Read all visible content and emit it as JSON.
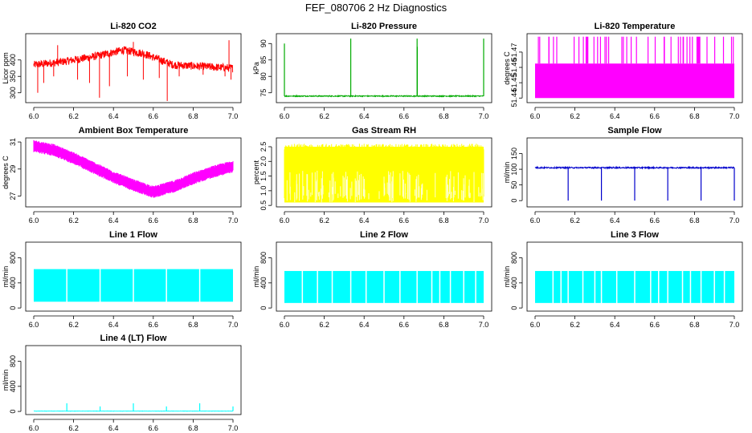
{
  "page": {
    "title": "FEF_080706  2 Hz Diagnostics"
  },
  "chart_data": [
    {
      "type": "line",
      "title": "Li-820 CO2",
      "xlabel": "",
      "ylabel": "Licor ppm",
      "xlim": [
        6.0,
        7.0
      ],
      "ylim": [
        270,
        480
      ],
      "color": "#ff0000",
      "xticks": [
        "6.0",
        "6.2",
        "6.4",
        "6.6",
        "6.8",
        "7.0"
      ],
      "yticks": [
        {
          "v": 300,
          "label": "300"
        },
        {
          "v": 350,
          "label": "350"
        },
        {
          "v": 400,
          "label": "400"
        }
      ],
      "render": {
        "pattern": "noisy",
        "base": [
          [
            6.0,
            385
          ],
          [
            6.15,
            395
          ],
          [
            6.3,
            410
          ],
          [
            6.45,
            430
          ],
          [
            6.55,
            420
          ],
          [
            6.7,
            385
          ],
          [
            7.0,
            375
          ]
        ],
        "noise": 12,
        "spikes": [
          [
            6.02,
            300
          ],
          [
            6.05,
            330
          ],
          [
            6.1,
            350
          ],
          [
            6.22,
            340
          ],
          [
            6.28,
            330
          ],
          [
            6.33,
            285
          ],
          [
            6.38,
            320
          ],
          [
            6.47,
            350
          ],
          [
            6.55,
            340
          ],
          [
            6.63,
            345
          ],
          [
            6.67,
            275
          ],
          [
            6.73,
            350
          ],
          [
            6.85,
            355
          ],
          [
            6.96,
            350
          ],
          [
            6.99,
            340
          ]
        ],
        "upspikes": [
          [
            6.12,
            445
          ],
          [
            6.5,
            455
          ],
          [
            6.98,
            460
          ]
        ]
      }
    },
    {
      "type": "line",
      "title": "Li-820 Pressure",
      "xlabel": "",
      "ylabel": "kPa",
      "xlim": [
        6.0,
        7.0
      ],
      "ylim": [
        72,
        93
      ],
      "color": "#00aa00",
      "xticks": [
        "6.0",
        "6.2",
        "6.4",
        "6.6",
        "6.8",
        "7.0"
      ],
      "yticks": [
        {
          "v": 75,
          "label": "75"
        },
        {
          "v": 80,
          "label": "80"
        },
        {
          "v": 85,
          "label": "85"
        },
        {
          "v": 90,
          "label": "90"
        }
      ],
      "render": {
        "pattern": "flat",
        "level": 74,
        "noise": 0.15,
        "upspikes": [
          [
            6.0,
            90
          ],
          [
            6.333,
            91.5
          ],
          [
            6.666,
            91.5
          ],
          [
            6.667,
            89
          ],
          [
            7.0,
            91.5
          ]
        ]
      }
    },
    {
      "type": "line",
      "title": "Li-820 Temperature",
      "xlabel": "",
      "ylabel": "degrees C",
      "xlim": [
        6.0,
        7.0
      ],
      "ylim": [
        51.437,
        51.482
      ],
      "color": "#ff00ff",
      "xticks": [
        "6.0",
        "6.2",
        "6.4",
        "6.6",
        "6.8",
        "7.0"
      ],
      "yticks": [
        {
          "v": 51.44,
          "label": "51.44"
        },
        {
          "v": 51.45,
          "label": "51.45"
        },
        {
          "v": 51.46,
          "label": "51.46"
        },
        {
          "v": 51.47,
          "label": "51.47"
        }
      ],
      "render": {
        "pattern": "band",
        "lo": 51.44,
        "hi": 51.4625,
        "spikeTop": 51.48,
        "spikeCount": 45
      }
    },
    {
      "type": "line",
      "title": "Ambient Box Temperature",
      "xlabel": "",
      "ylabel": "degrees C",
      "xlim": [
        6.0,
        7.0
      ],
      "ylim": [
        26.2,
        31.3
      ],
      "color": "#ff00ff",
      "xticks": [
        "6.0",
        "6.2",
        "6.4",
        "6.6",
        "6.8",
        "7.0"
      ],
      "yticks": [
        {
          "v": 27,
          "label": "27"
        },
        {
          "v": 29,
          "label": "29"
        },
        {
          "v": 31,
          "label": "31"
        }
      ],
      "render": {
        "pattern": "envelope",
        "center": [
          [
            6.0,
            30.7
          ],
          [
            6.1,
            30.4
          ],
          [
            6.2,
            29.8
          ],
          [
            6.3,
            29.1
          ],
          [
            6.4,
            28.4
          ],
          [
            6.5,
            27.8
          ],
          [
            6.6,
            27.3
          ],
          [
            6.7,
            27.7
          ],
          [
            6.8,
            28.3
          ],
          [
            6.9,
            28.8
          ],
          [
            7.0,
            29.2
          ]
        ],
        "half": 0.45
      }
    },
    {
      "type": "line",
      "title": "Gas Stream RH",
      "xlabel": "",
      "ylabel": "percent",
      "xlim": [
        6.0,
        7.0
      ],
      "ylim": [
        0.45,
        2.8
      ],
      "color": "#ffff00",
      "xticks": [
        "6.0",
        "6.2",
        "6.4",
        "6.6",
        "6.8",
        "7.0"
      ],
      "yticks": [
        {
          "v": 0.5,
          "label": "0.5"
        },
        {
          "v": 1.0,
          "label": "1.0"
        },
        {
          "v": 1.5,
          "label": "1.5"
        },
        {
          "v": 2.0,
          "label": "2.0"
        },
        {
          "v": 2.5,
          "label": "2.5"
        }
      ],
      "render": {
        "pattern": "band",
        "lo": 0.6,
        "hi": 2.5,
        "jag": true
      }
    },
    {
      "type": "line",
      "title": "Sample Flow",
      "xlabel": "",
      "ylabel": "ml/min",
      "xlim": [
        6.0,
        7.0
      ],
      "ylim": [
        -20,
        200
      ],
      "color": "#0000cc",
      "xticks": [
        "6.0",
        "6.2",
        "6.4",
        "6.6",
        "6.8",
        "7.0"
      ],
      "yticks": [
        {
          "v": 0,
          "label": "0"
        },
        {
          "v": 50,
          "label": "50"
        },
        {
          "v": 100,
          "label": "100"
        },
        {
          "v": 150,
          "label": "150"
        }
      ],
      "render": {
        "pattern": "flat",
        "level": 105,
        "noise": 2,
        "dips": [
          [
            6.166,
            0
          ],
          [
            6.333,
            0
          ],
          [
            6.5,
            0
          ],
          [
            6.666,
            0
          ],
          [
            6.833,
            0
          ],
          [
            7.0,
            0
          ]
        ]
      }
    },
    {
      "type": "line",
      "title": "Line 1 Flow",
      "xlabel": "",
      "ylabel": "ml/min",
      "xlim": [
        6.0,
        7.0
      ],
      "ylim": [
        -50,
        1050
      ],
      "color": "#00ffff",
      "xticks": [
        "6.0",
        "6.2",
        "6.4",
        "6.6",
        "6.8",
        "7.0"
      ],
      "yticks": [
        {
          "v": 0,
          "label": "0"
        },
        {
          "v": 400,
          "label": "400"
        },
        {
          "v": 800,
          "label": "800"
        }
      ],
      "render": {
        "pattern": "band",
        "lo": 100,
        "hi": 620,
        "gaps": [
          6.166,
          6.333,
          6.5,
          6.666,
          6.833
        ]
      }
    },
    {
      "type": "line",
      "title": "Line 2 Flow",
      "xlabel": "",
      "ylabel": "ml/min",
      "xlim": [
        6.0,
        7.0
      ],
      "ylim": [
        -50,
        1050
      ],
      "color": "#00ffff",
      "xticks": [
        "6.0",
        "6.2",
        "6.4",
        "6.6",
        "6.8",
        "7.0"
      ],
      "yticks": [
        {
          "v": 0,
          "label": "0"
        },
        {
          "v": 400,
          "label": "400"
        },
        {
          "v": 800,
          "label": "800"
        }
      ],
      "render": {
        "pattern": "band",
        "lo": 80,
        "hi": 590,
        "gaps": [
          6.09,
          6.166,
          6.24,
          6.333,
          6.41,
          6.5,
          6.58,
          6.666,
          6.74,
          6.78,
          6.833,
          6.9,
          6.96
        ]
      }
    },
    {
      "type": "line",
      "title": "Line 3 Flow",
      "xlabel": "",
      "ylabel": "ml/min",
      "xlim": [
        6.0,
        7.0
      ],
      "ylim": [
        -50,
        1050
      ],
      "color": "#00ffff",
      "xticks": [
        "6.0",
        "6.2",
        "6.4",
        "6.6",
        "6.8",
        "7.0"
      ],
      "yticks": [
        {
          "v": 0,
          "label": "0"
        },
        {
          "v": 400,
          "label": "400"
        },
        {
          "v": 800,
          "label": "800"
        }
      ],
      "render": {
        "pattern": "band",
        "lo": 80,
        "hi": 590,
        "gaps": [
          6.09,
          6.13,
          6.166,
          6.24,
          6.3,
          6.333,
          6.41,
          6.5,
          6.58,
          6.62,
          6.666,
          6.74,
          6.78,
          6.833,
          6.9,
          6.95
        ]
      }
    },
    {
      "type": "line",
      "title": "Line 4 (LT) Flow",
      "xlabel": "",
      "ylabel": "ml/min",
      "xlim": [
        6.0,
        7.0
      ],
      "ylim": [
        -50,
        1050
      ],
      "color": "#00ffff",
      "xticks": [
        "6.0",
        "6.2",
        "6.4",
        "6.6",
        "6.8",
        "7.0"
      ],
      "yticks": [
        {
          "v": 0,
          "label": "0"
        },
        {
          "v": 400,
          "label": "400"
        },
        {
          "v": 800,
          "label": "800"
        }
      ],
      "render": {
        "pattern": "flat",
        "level": 5,
        "noise": 2,
        "upspikes": [
          [
            6.166,
            130
          ],
          [
            6.333,
            80
          ],
          [
            6.5,
            130
          ],
          [
            6.666,
            80
          ],
          [
            6.833,
            130
          ],
          [
            7.0,
            80
          ]
        ]
      }
    }
  ]
}
